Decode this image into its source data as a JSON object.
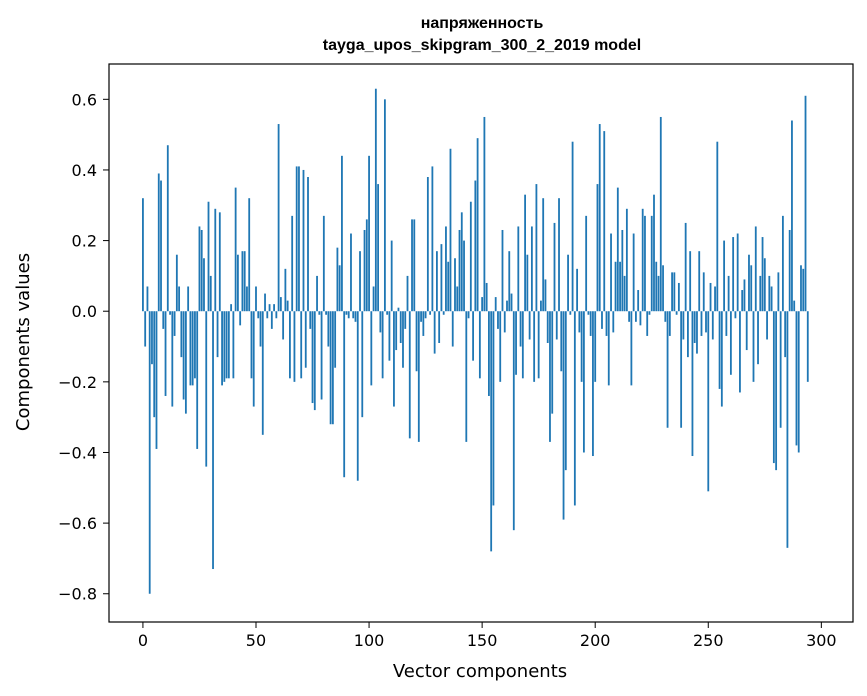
{
  "chart_data": {
    "type": "bar",
    "title": [
      "напряженность",
      "tayga_upos_skipgram_300_2_2019 model"
    ],
    "xlabel": "Vector components",
    "ylabel": "Components values",
    "xlim": [
      -15,
      314
    ],
    "ylim": [
      -0.88,
      0.7
    ],
    "xticks": [
      0,
      50,
      100,
      150,
      200,
      250,
      300
    ],
    "xtick_labels": [
      "0",
      "50",
      "100",
      "150",
      "200",
      "250",
      "300"
    ],
    "yticks": [
      -0.8,
      -0.6,
      -0.4,
      -0.2,
      0.0,
      0.2,
      0.4,
      0.6
    ],
    "ytick_labels": [
      "−0.8",
      "−0.6",
      "−0.4",
      "−0.2",
      "0.0",
      "0.2",
      "0.4",
      "0.6"
    ],
    "bar_color": "#1f77b4",
    "grid": false,
    "values": [
      0.32,
      -0.1,
      0.07,
      -0.8,
      -0.15,
      -0.3,
      -0.39,
      0.39,
      0.37,
      -0.05,
      -0.24,
      0.47,
      -0.01,
      -0.27,
      -0.07,
      0.16,
      0.07,
      -0.13,
      -0.25,
      -0.29,
      0.07,
      -0.21,
      -0.21,
      -0.19,
      -0.39,
      0.24,
      0.23,
      0.15,
      -0.44,
      0.31,
      0.1,
      -0.73,
      0.29,
      -0.13,
      0.28,
      -0.21,
      -0.2,
      -0.19,
      -0.19,
      0.02,
      -0.19,
      0.35,
      0.16,
      -0.04,
      0.17,
      0.17,
      0.07,
      0.32,
      -0.19,
      -0.27,
      0.07,
      -0.02,
      -0.1,
      -0.35,
      0.05,
      -0.02,
      0.02,
      -0.05,
      0.02,
      -0.02,
      0.53,
      0.04,
      -0.08,
      0.12,
      0.03,
      -0.19,
      0.27,
      -0.2,
      0.41,
      0.41,
      -0.19,
      0.4,
      -0.16,
      0.38,
      -0.05,
      -0.26,
      -0.28,
      0.1,
      -0.01,
      -0.25,
      0.27,
      -0.01,
      -0.1,
      -0.32,
      -0.32,
      -0.16,
      0.18,
      0.13,
      0.44,
      -0.47,
      -0.01,
      -0.02,
      0.22,
      -0.02,
      -0.03,
      -0.48,
      0.17,
      -0.3,
      0.23,
      0.26,
      0.44,
      -0.21,
      0.07,
      0.63,
      0.36,
      -0.06,
      -0.19,
      0.6,
      -0.01,
      -0.14,
      0.2,
      -0.27,
      -0.11,
      0.01,
      -0.09,
      -0.16,
      -0.05,
      0.1,
      -0.36,
      0.26,
      0.26,
      -0.17,
      -0.37,
      -0.03,
      -0.07,
      -0.02,
      0.38,
      -0.01,
      0.41,
      -0.12,
      0.17,
      -0.09,
      0.19,
      -0.01,
      0.24,
      0.14,
      0.46,
      -0.1,
      0.15,
      0.07,
      0.23,
      0.28,
      0.2,
      -0.37,
      -0.02,
      0.31,
      -0.14,
      0.37,
      0.49,
      -0.19,
      0.04,
      0.55,
      0.08,
      -0.24,
      -0.68,
      -0.55,
      0.04,
      -0.05,
      -0.2,
      0.23,
      -0.06,
      0.03,
      0.17,
      0.05,
      -0.62,
      -0.18,
      0.24,
      -0.1,
      -0.19,
      0.33,
      0.16,
      -0.08,
      0.24,
      -0.2,
      0.36,
      -0.19,
      0.03,
      0.32,
      0.09,
      -0.09,
      -0.37,
      -0.29,
      0.25,
      -0.08,
      0.32,
      -0.17,
      -0.59,
      -0.45,
      0.16,
      -0.01,
      0.48,
      -0.55,
      0.12,
      -0.06,
      -0.2,
      -0.4,
      0.27,
      -0.01,
      -0.07,
      -0.41,
      -0.2,
      0.36,
      0.53,
      -0.05,
      0.51,
      -0.07,
      -0.21,
      0.22,
      -0.06,
      0.14,
      0.35,
      0.14,
      0.23,
      0.1,
      0.29,
      -0.03,
      -0.21,
      0.22,
      -0.03,
      0.06,
      -0.04,
      0.29,
      0.27,
      -0.07,
      -0.01,
      0.27,
      0.33,
      0.14,
      0.1,
      0.55,
      0.13,
      -0.03,
      -0.33,
      -0.07,
      0.11,
      0.11,
      -0.01,
      0.08,
      -0.33,
      -0.08,
      0.25,
      -0.13,
      0.17,
      -0.41,
      -0.09,
      -0.12,
      0.17,
      -0.07,
      0.11,
      -0.06,
      -0.51,
      0.08,
      -0.08,
      0.07,
      0.48,
      -0.22,
      -0.27,
      0.2,
      -0.07,
      0.1,
      -0.18,
      0.21,
      -0.02,
      0.22,
      -0.23,
      0.06,
      0.09,
      -0.11,
      0.16,
      0.13,
      -0.2,
      0.24,
      -0.15,
      0.1,
      0.21,
      0.15,
      -0.08,
      0.1,
      0.07,
      -0.43,
      -0.45,
      0.11,
      -0.33,
      0.27,
      -0.13,
      -0.67,
      0.23,
      0.54,
      0.03,
      -0.38,
      -0.4,
      0.13,
      0.12,
      0.61,
      -0.2
    ]
  }
}
